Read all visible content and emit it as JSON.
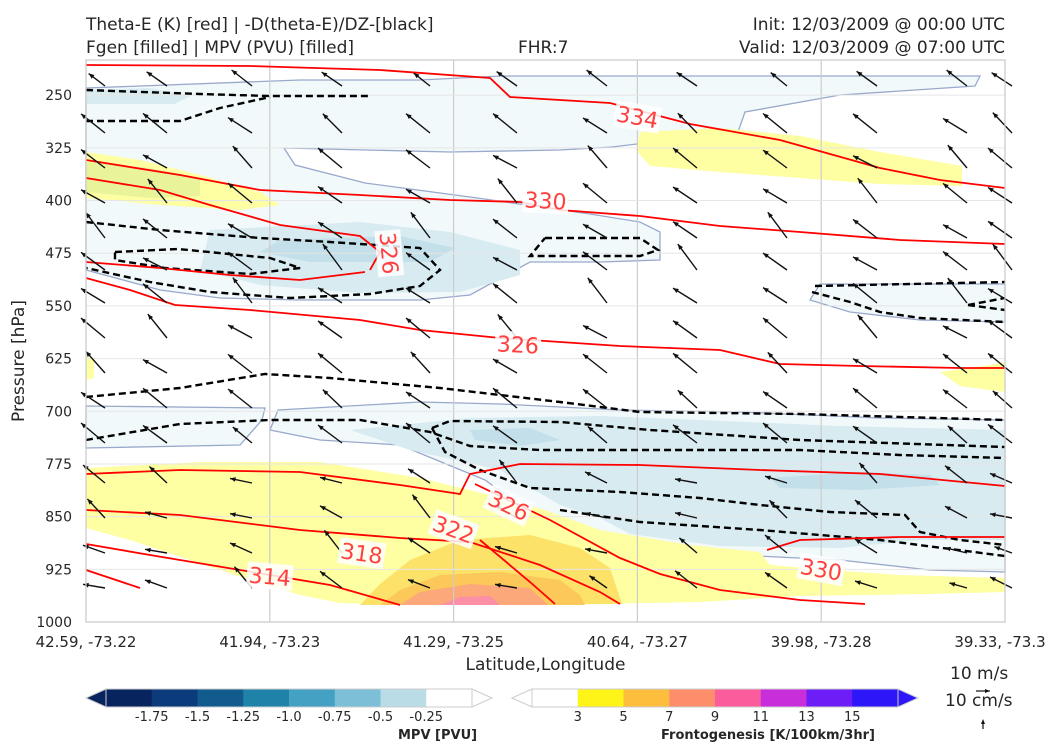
{
  "header": {
    "title_line1": "Theta-E (K) [red] | -D(theta-E)/DZ-[black]",
    "title_line2": "Fgen [filled] | MPV (PVU) [filled]",
    "fhr": "FHR:7",
    "init": "Init: 12/03/2009 @ 00:00 UTC",
    "valid": "Valid: 12/03/2009 @ 07:00 UTC"
  },
  "chart_data": {
    "type": "contour",
    "xlabel": "Latitude,Longitude",
    "ylabel": "Pressure [hPa]",
    "x_ticks": [
      "42.59, -73.22",
      "41.94, -73.23",
      "41.29, -73.25",
      "40.64, -73.27",
      "39.98, -73.28",
      "39.33, -73.3"
    ],
    "y_ticks": [
      250,
      325,
      400,
      475,
      550,
      625,
      700,
      775,
      850,
      925,
      1000
    ],
    "ylim": [
      1000,
      200
    ],
    "y_inverted": true,
    "grid": true,
    "theta_e_contour_labels": [
      {
        "value": "334",
        "x_index": 3.0,
        "p": 281
      },
      {
        "value": "330",
        "x_index": 2.5,
        "p": 400
      },
      {
        "value": "326",
        "x_index": 1.65,
        "p": 475
      },
      {
        "value": "326",
        "x_index": 2.35,
        "p": 605
      },
      {
        "value": "326",
        "x_index": 2.3,
        "p": 834
      },
      {
        "value": "322",
        "x_index": 2.0,
        "p": 868
      },
      {
        "value": "318",
        "x_index": 1.5,
        "p": 902
      },
      {
        "value": "314",
        "x_index": 1.0,
        "p": 935
      },
      {
        "value": "330",
        "x_index": 4.0,
        "p": 925
      }
    ],
    "mpv_colorbar": {
      "label": "MPV [PVU]",
      "ticks": [
        "-1.75",
        "-1.5",
        "-1.25",
        "-1.0",
        "-0.75",
        "-0.5",
        "-0.25"
      ],
      "colors": [
        "#08245e",
        "#0b3b7a",
        "#115b8f",
        "#1f82a8",
        "#45a1c4",
        "#7cbfd6",
        "#b9dce6",
        "#ffffff"
      ]
    },
    "fgen_colorbar": {
      "label": "Frontogenesis [K/100km/3hr]",
      "ticks": [
        "3",
        "5",
        "7",
        "9",
        "11",
        "13",
        "15"
      ],
      "colors": [
        "#ffffff",
        "#fff418",
        "#fdbe3e",
        "#fc8e6c",
        "#fb5c9c",
        "#c92edb",
        "#6d1df5",
        "#2d16f7"
      ]
    },
    "wind_scale": {
      "horizontal": "10 m/s",
      "vertical": "10 cm/s"
    },
    "colors": {
      "theta_e": "#ff0000",
      "ddz": "#000000",
      "arrows": "#111111",
      "mpv_outline": "#99a9cc",
      "label_red": "#ff4040"
    }
  }
}
